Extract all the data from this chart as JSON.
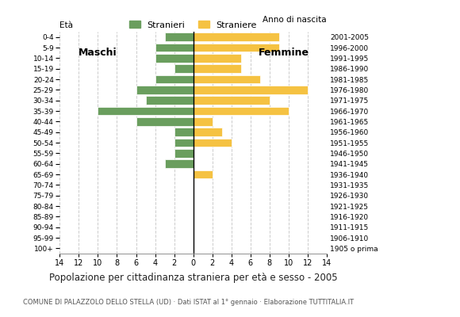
{
  "age_groups": [
    "100+",
    "95-99",
    "90-94",
    "85-89",
    "80-84",
    "75-79",
    "70-74",
    "65-69",
    "60-64",
    "55-59",
    "50-54",
    "45-49",
    "40-44",
    "35-39",
    "30-34",
    "25-29",
    "20-24",
    "15-19",
    "10-14",
    "5-9",
    "0-4"
  ],
  "birth_years": [
    "1905 o prima",
    "1906-1910",
    "1911-1915",
    "1916-1920",
    "1921-1925",
    "1926-1930",
    "1931-1935",
    "1936-1940",
    "1941-1945",
    "1946-1950",
    "1951-1955",
    "1956-1960",
    "1961-1965",
    "1966-1970",
    "1971-1975",
    "1976-1980",
    "1981-1985",
    "1986-1990",
    "1991-1995",
    "1996-2000",
    "2001-2005"
  ],
  "maschi": [
    0,
    0,
    0,
    0,
    0,
    0,
    0,
    0,
    3,
    2,
    2,
    2,
    6,
    10,
    5,
    6,
    4,
    2,
    4,
    4,
    3
  ],
  "femmine": [
    0,
    0,
    0,
    0,
    0,
    0,
    0,
    2,
    0,
    0,
    4,
    3,
    2,
    10,
    8,
    12,
    7,
    5,
    5,
    9,
    9
  ],
  "color_maschi": "#6a9e5e",
  "color_femmine": "#f5c242",
  "title": "Popolazione per cittadinanza straniera per età e sesso - 2005",
  "subtitle": "COMUNE DI PALAZZOLO DELLO STELLA (UD) · Dati ISTAT al 1° gennaio · Elaborazione TUTTITALIA.IT",
  "xlabel_left": "Età",
  "xlabel_right": "Anno di nascita",
  "label_maschi": "Maschi",
  "label_femmine": "Femmine",
  "legend_stranieri": "Stranieri",
  "legend_straniere": "Straniere",
  "xlim": 14,
  "background_color": "#ffffff"
}
